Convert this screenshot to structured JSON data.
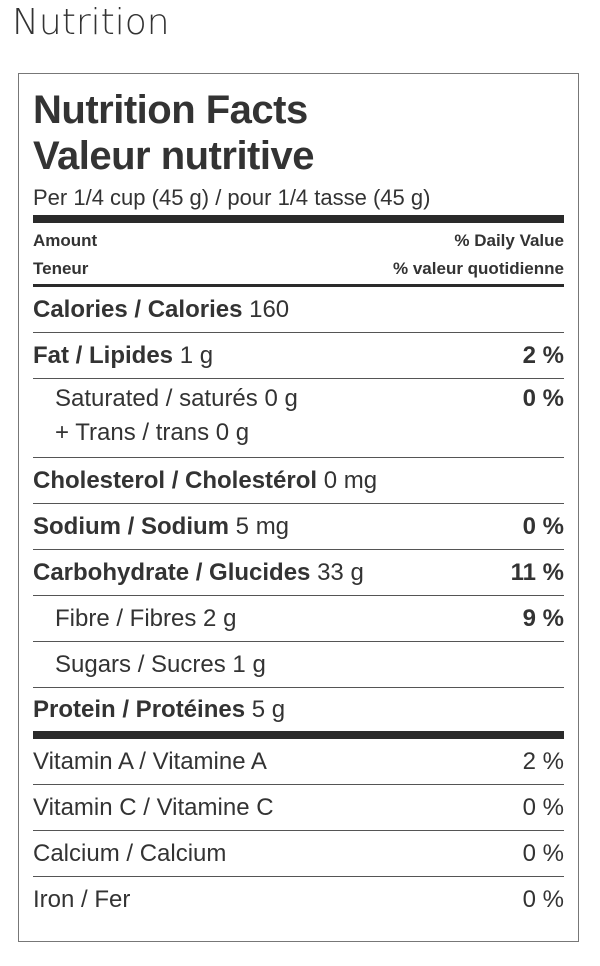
{
  "heading": "Nutrition",
  "label": {
    "title_en": "Nutrition Facts",
    "title_fr": "Valeur nutritive",
    "serving": "Per 1/4 cup (45 g) / pour 1/4 tasse (45 g)",
    "amount_en": "Amount",
    "amount_fr": "Teneur",
    "dv_en": "% Daily Value",
    "dv_fr": "% valeur quotidienne",
    "calories": {
      "label": "Calories / Calories",
      "value": "160"
    },
    "fat": {
      "label": "Fat / Lipides",
      "value": "1 g",
      "dv": "2 %"
    },
    "saturated": {
      "label": "Saturated / saturés",
      "value": "0 g",
      "dv": "0 %"
    },
    "trans": {
      "label": "+ Trans / trans",
      "value": "0 g"
    },
    "cholesterol": {
      "label": "Cholesterol / Cholestérol",
      "value": "0 mg"
    },
    "sodium": {
      "label": "Sodium / Sodium",
      "value": "5 mg",
      "dv": "0 %"
    },
    "carbohydrate": {
      "label": "Carbohydrate / Glucides",
      "value": "33 g",
      "dv": "11 %"
    },
    "fibre": {
      "label": "Fibre / Fibres",
      "value": "2 g",
      "dv": "9 %"
    },
    "sugars": {
      "label": "Sugars / Sucres",
      "value": "1 g"
    },
    "protein": {
      "label": "Protein / Protéines",
      "value": "5 g"
    },
    "vitamins": [
      {
        "label": "Vitamin A / Vitamine A",
        "dv": "2 %"
      },
      {
        "label": "Vitamin C / Vitamine C",
        "dv": "0 %"
      },
      {
        "label": "Calcium / Calcium",
        "dv": "0 %"
      },
      {
        "label": "Iron / Fer",
        "dv": "0 %"
      }
    ]
  }
}
